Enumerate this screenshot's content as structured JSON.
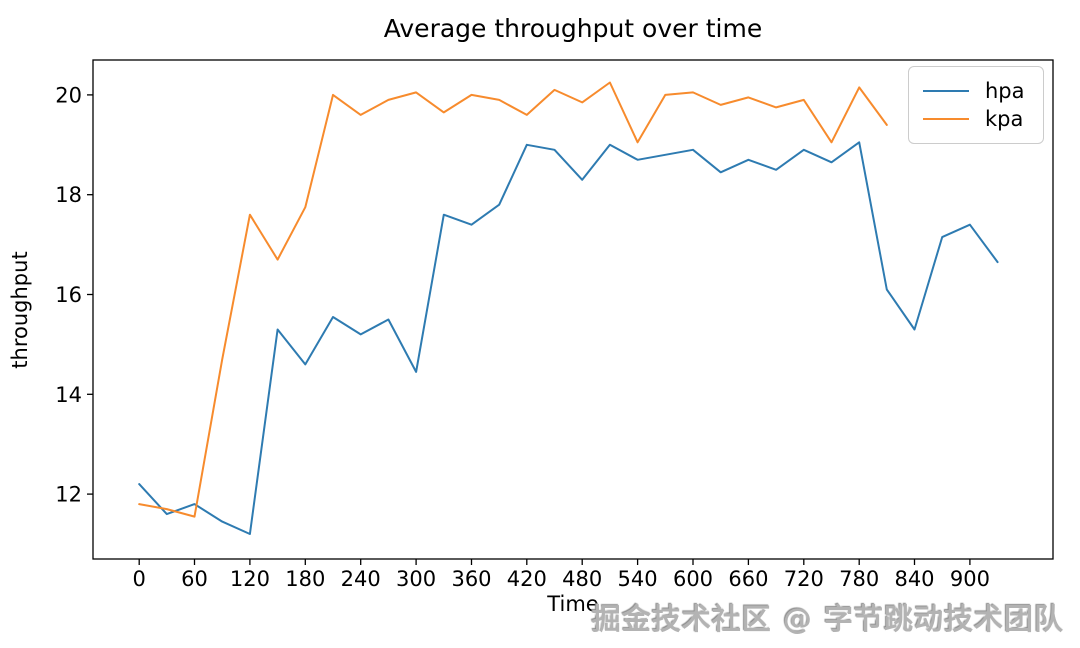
{
  "watermark": {
    "text": "掘金技术社区 @ 字节跳动技术团队"
  },
  "chart_data": {
    "type": "line",
    "title": "Average throughput over time",
    "xlabel": "Time",
    "ylabel": "throughput",
    "xlim": [
      -50,
      990
    ],
    "ylim": [
      10.7,
      20.7
    ],
    "xticks": [
      0,
      60,
      120,
      180,
      240,
      300,
      360,
      420,
      480,
      540,
      600,
      660,
      720,
      780,
      840,
      900
    ],
    "yticks": [
      12,
      14,
      16,
      18,
      20
    ],
    "grid": false,
    "legend_position": "upper right",
    "series": [
      {
        "name": "hpa",
        "color": "#2e7bb1",
        "x": [
          0,
          30,
          60,
          90,
          120,
          150,
          180,
          210,
          240,
          270,
          300,
          330,
          360,
          390,
          420,
          450,
          480,
          510,
          540,
          570,
          600,
          630,
          660,
          690,
          720,
          750,
          780,
          810,
          840,
          870,
          900,
          930
        ],
        "y": [
          12.2,
          11.6,
          11.8,
          11.45,
          11.2,
          15.3,
          14.6,
          15.55,
          15.2,
          15.5,
          14.45,
          17.6,
          17.4,
          17.8,
          19.0,
          18.9,
          18.3,
          19.0,
          18.7,
          18.8,
          18.9,
          18.45,
          18.7,
          18.5,
          18.9,
          18.65,
          19.05,
          16.1,
          15.3,
          17.15,
          17.4,
          16.65
        ]
      },
      {
        "name": "kpa",
        "color": "#f78b2d",
        "x": [
          0,
          30,
          60,
          90,
          120,
          150,
          180,
          210,
          240,
          270,
          300,
          330,
          360,
          390,
          420,
          450,
          480,
          510,
          540,
          570,
          600,
          630,
          660,
          690,
          720,
          750,
          780,
          810
        ],
        "y": [
          11.8,
          11.7,
          11.55,
          14.7,
          17.6,
          16.7,
          17.75,
          20.0,
          19.6,
          19.9,
          20.05,
          19.65,
          20.0,
          19.9,
          19.6,
          20.1,
          19.85,
          20.25,
          19.05,
          20.0,
          20.05,
          19.8,
          19.95,
          19.75,
          19.9,
          19.05,
          20.15,
          19.4
        ]
      }
    ]
  }
}
